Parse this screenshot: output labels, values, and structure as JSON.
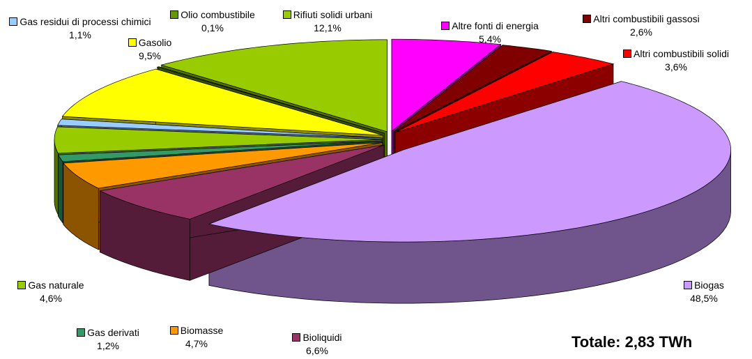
{
  "chart_data": {
    "type": "pie",
    "categories": [
      "Altre fonti di energia",
      "Altri combustibili gassosi",
      "Altri combustibili solidi",
      "Biogas",
      "Bioliquidi",
      "Biomasse",
      "Gas derivati",
      "Gas naturale",
      "Gas residui di processi chimici",
      "Gasolio",
      "Olio combustibile",
      "Rifiuti solidi urbani"
    ],
    "values": [
      5.4,
      2.6,
      3.6,
      48.5,
      6.6,
      4.7,
      1.2,
      4.6,
      1.1,
      9.5,
      0.1,
      12.1
    ],
    "value_labels": [
      "5,4%",
      "2,6%",
      "3,6%",
      "48,5%",
      "6,6%",
      "4,7%",
      "1,2%",
      "4,6%",
      "1,1%",
      "9,5%",
      "0,1%",
      "12,1%"
    ],
    "colors": [
      "#ff00ff",
      "#800000",
      "#ff0000",
      "#cc99ff",
      "#993366",
      "#ff9900",
      "#339966",
      "#99cc00",
      "#99ccff",
      "#ffff00",
      "#669900",
      "#99cc00"
    ],
    "annotation": "Totale: 2,83 TWh"
  }
}
